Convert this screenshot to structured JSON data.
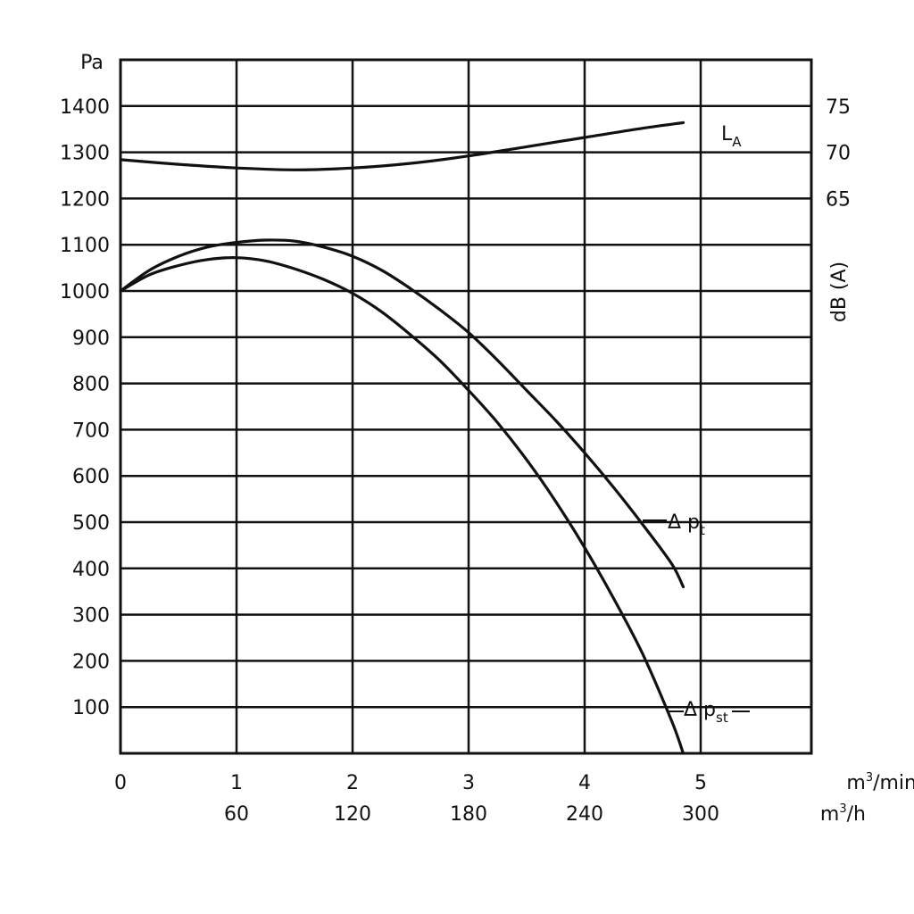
{
  "chart_data": {
    "type": "line",
    "x_unit": "m³/min",
    "x_unit_base": "m",
    "x_unit_sup": "3",
    "x_unit_rest": "/min",
    "x2_unit_base": "m",
    "x2_unit_sup": "3",
    "x2_unit_rest": "/h",
    "y_unit": "Pa",
    "y2_label": "dB (A)",
    "xlim": [
      0,
      5.9
    ],
    "ylim": [
      0,
      1500
    ],
    "y2_mapping": {
      "y2_values": [
        65,
        75
      ],
      "y_positions_pa": [
        1200,
        1400
      ]
    },
    "x_ticks": [
      0,
      1,
      2,
      3,
      4,
      5
    ],
    "x_tick_labels": [
      "0",
      "1",
      "2",
      "3",
      "4",
      "5"
    ],
    "x2_tick_labels": [
      "",
      "60",
      "120",
      "180",
      "240",
      "300"
    ],
    "y_ticks": [
      100,
      200,
      300,
      400,
      500,
      600,
      700,
      800,
      900,
      1000,
      1100,
      1200,
      1300,
      1400
    ],
    "y_tick_labels": [
      "100",
      "200",
      "300",
      "400",
      "500",
      "600",
      "700",
      "800",
      "900",
      "1000",
      "1100",
      "1200",
      "1300",
      "1400"
    ],
    "y2_ticks": [
      65,
      70,
      75
    ],
    "y2_tick_labels": [
      "65",
      "70",
      "75"
    ],
    "grid": true,
    "series": [
      {
        "name": "LA",
        "label_main": "L",
        "label_sub": "A",
        "axis": "right",
        "x": [
          0,
          0.5,
          1,
          1.5,
          2,
          2.5,
          3,
          3.5,
          4,
          4.5,
          4.85
        ],
        "y": [
          69.2,
          68.7,
          68.3,
          68.1,
          68.3,
          68.8,
          69.6,
          70.6,
          71.6,
          72.6,
          73.2
        ]
      },
      {
        "name": "Δpt",
        "label_main": "Δ p",
        "label_sub": "t",
        "axis": "left",
        "x": [
          0,
          0.25,
          0.5,
          0.75,
          1,
          1.25,
          1.5,
          1.75,
          2,
          2.25,
          2.5,
          2.75,
          3,
          3.25,
          3.5,
          3.75,
          4,
          4.25,
          4.5,
          4.75,
          4.85
        ],
        "y": [
          1000,
          1045,
          1075,
          1095,
          1105,
          1110,
          1108,
          1095,
          1075,
          1045,
          1005,
          960,
          910,
          850,
          785,
          720,
          650,
          575,
          495,
          410,
          360
        ]
      },
      {
        "name": "Δpst",
        "label_main": "Δ p",
        "label_sub": "st",
        "axis": "left",
        "x": [
          0,
          0.25,
          0.5,
          0.75,
          1,
          1.25,
          1.5,
          1.75,
          2,
          2.25,
          2.5,
          2.75,
          3,
          3.25,
          3.5,
          3.75,
          4,
          4.25,
          4.5,
          4.75,
          4.85
        ],
        "y": [
          1000,
          1035,
          1055,
          1068,
          1072,
          1065,
          1048,
          1025,
          995,
          955,
          905,
          850,
          785,
          715,
          635,
          545,
          445,
          335,
          215,
          70,
          0
        ]
      }
    ]
  }
}
